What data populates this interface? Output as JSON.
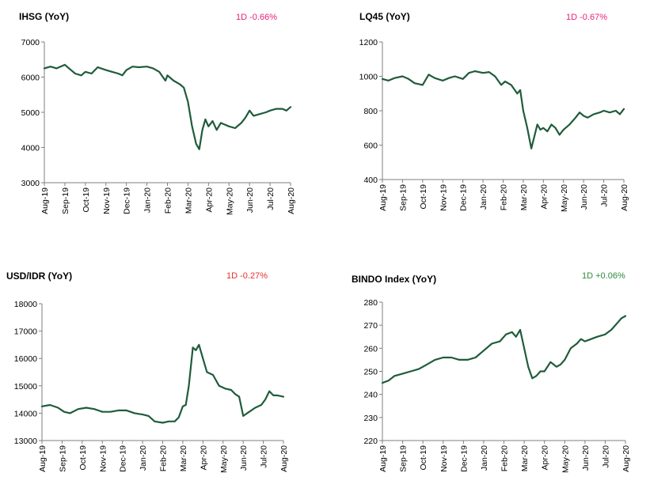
{
  "colors": {
    "line": "#1f5c3a",
    "negative": "#e8207a",
    "negative_red": "#e83030",
    "positive": "#2e8b3a",
    "axis": "#7f7f7f"
  },
  "months": [
    "Aug-19",
    "Sep-19",
    "Oct-19",
    "Nov-19",
    "Dec-19",
    "Jan-20",
    "Feb-20",
    "Mar-20",
    "Apr-20",
    "May-20",
    "Jun-20",
    "Jul-20",
    "Aug-20"
  ],
  "chart_data": [
    {
      "type": "line",
      "title": "IHSG (YoY)",
      "change": "1D -0.66%",
      "change_color": "#e8207a",
      "ylim": [
        3000,
        7000
      ],
      "yticks": [
        3000,
        4000,
        5000,
        6000,
        7000
      ],
      "categories": [
        "Aug-19",
        "Sep-19",
        "Oct-19",
        "Nov-19",
        "Dec-19",
        "Jan-20",
        "Feb-20",
        "Mar-20",
        "Apr-20",
        "May-20",
        "Jun-20",
        "Jul-20",
        "Aug-20"
      ],
      "series": [
        {
          "x": [
            0,
            0.3,
            0.6,
            1.0,
            1.3,
            1.5,
            1.8,
            2.0,
            2.3,
            2.6,
            3.0,
            3.3,
            3.6,
            3.8,
            4.0,
            4.3,
            4.6,
            5.0,
            5.3,
            5.6,
            5.9,
            6.0,
            6.3,
            6.6,
            6.8,
            7.0,
            7.2,
            7.4,
            7.55,
            7.7,
            7.85,
            8.0,
            8.2,
            8.4,
            8.6,
            8.8,
            9.0,
            9.3,
            9.6,
            9.8,
            10.0,
            10.2,
            10.5,
            10.8,
            11.0,
            11.3,
            11.6,
            11.8,
            12.0
          ],
          "values": [
            6250,
            6300,
            6250,
            6350,
            6200,
            6100,
            6050,
            6150,
            6100,
            6280,
            6200,
            6150,
            6100,
            6050,
            6200,
            6300,
            6280,
            6300,
            6250,
            6150,
            5900,
            6050,
            5900,
            5800,
            5700,
            5300,
            4600,
            4100,
            3950,
            4500,
            4800,
            4600,
            4750,
            4500,
            4700,
            4650,
            4600,
            4550,
            4700,
            4850,
            5050,
            4900,
            4950,
            5000,
            5050,
            5100,
            5100,
            5050,
            5150
          ]
        }
      ]
    },
    {
      "type": "line",
      "title": "LQ45 (YoY)",
      "change": "1D -0.67%",
      "change_color": "#e8207a",
      "ylim": [
        400,
        1200
      ],
      "yticks": [
        400,
        600,
        800,
        1000,
        1200
      ],
      "categories": [
        "Aug-19",
        "Sep-19",
        "Oct-19",
        "Nov-19",
        "Dec-19",
        "Jan-20",
        "Feb-20",
        "Mar-20",
        "Apr-20",
        "May-20",
        "Jun-20",
        "Jul-20",
        "Aug-20"
      ],
      "series": [
        {
          "x": [
            0,
            0.3,
            0.6,
            1.0,
            1.3,
            1.6,
            2.0,
            2.3,
            2.6,
            3.0,
            3.3,
            3.6,
            4.0,
            4.3,
            4.6,
            5.0,
            5.3,
            5.6,
            5.9,
            6.1,
            6.4,
            6.7,
            6.85,
            7.0,
            7.2,
            7.4,
            7.55,
            7.7,
            7.85,
            8.0,
            8.2,
            8.4,
            8.6,
            8.8,
            9.0,
            9.3,
            9.6,
            9.8,
            10.0,
            10.2,
            10.5,
            10.8,
            11.0,
            11.3,
            11.6,
            11.8,
            12.0
          ],
          "values": [
            985,
            975,
            990,
            1000,
            985,
            960,
            950,
            1010,
            990,
            975,
            990,
            1000,
            985,
            1020,
            1030,
            1020,
            1025,
            1000,
            950,
            970,
            950,
            900,
            920,
            800,
            700,
            580,
            650,
            720,
            690,
            700,
            680,
            720,
            700,
            660,
            690,
            720,
            760,
            790,
            770,
            760,
            780,
            790,
            800,
            790,
            800,
            780,
            810
          ]
        }
      ]
    },
    {
      "type": "line",
      "title": "USD/IDR  (YoY)",
      "change": "1D -0.27%",
      "change_color": "#e83030",
      "ylim": [
        13000,
        18000
      ],
      "yticks": [
        13000,
        14000,
        15000,
        16000,
        17000,
        18000
      ],
      "categories": [
        "Aug-19",
        "Sep-19",
        "Oct-19",
        "Nov-19",
        "Dec-19",
        "Jan-20",
        "Feb-20",
        "Mar-20",
        "Apr-20",
        "May-20",
        "Jun-20",
        "Jul-20",
        "Aug-20"
      ],
      "series": [
        {
          "x": [
            0,
            0.4,
            0.8,
            1.1,
            1.4,
            1.8,
            2.2,
            2.6,
            3.0,
            3.4,
            3.8,
            4.2,
            4.6,
            5.0,
            5.3,
            5.6,
            6.0,
            6.3,
            6.6,
            6.8,
            7.0,
            7.15,
            7.3,
            7.5,
            7.65,
            7.8,
            8.0,
            8.2,
            8.5,
            8.8,
            9.1,
            9.4,
            9.6,
            9.8,
            10.0,
            10.3,
            10.6,
            10.9,
            11.1,
            11.3,
            11.5,
            11.7,
            12.0
          ],
          "values": [
            14250,
            14300,
            14200,
            14050,
            14000,
            14150,
            14200,
            14150,
            14050,
            14050,
            14100,
            14100,
            14000,
            13950,
            13900,
            13700,
            13650,
            13700,
            13700,
            13850,
            14250,
            14300,
            15000,
            16400,
            16300,
            16500,
            16000,
            15500,
            15400,
            15000,
            14900,
            14850,
            14700,
            14600,
            13900,
            14050,
            14200,
            14300,
            14500,
            14800,
            14650,
            14650,
            14600
          ]
        }
      ]
    },
    {
      "type": "line",
      "title": "BINDO Index (YoY)",
      "change": "1D +0.06%",
      "change_color": "#2e8b3a",
      "ylim": [
        220,
        280
      ],
      "yticks": [
        220,
        230,
        240,
        250,
        260,
        270,
        280
      ],
      "categories": [
        "Aug-19",
        "Sep-19",
        "Oct-19",
        "Nov-19",
        "Dec-19",
        "Jan-20",
        "Feb-20",
        "Mar-20",
        "Apr-20",
        "May-20",
        "Jun-20",
        "Jul-20",
        "Aug-20"
      ],
      "series": [
        {
          "x": [
            0,
            0.3,
            0.6,
            1.0,
            1.4,
            1.8,
            2.2,
            2.6,
            3.0,
            3.4,
            3.8,
            4.2,
            4.6,
            5.0,
            5.4,
            5.8,
            6.1,
            6.4,
            6.6,
            6.8,
            7.0,
            7.2,
            7.4,
            7.6,
            7.8,
            8.0,
            8.3,
            8.6,
            8.8,
            9.0,
            9.3,
            9.6,
            9.8,
            10.0,
            10.3,
            10.6,
            11.0,
            11.3,
            11.6,
            11.8,
            12.0
          ],
          "values": [
            245,
            246,
            248,
            249,
            250,
            251,
            253,
            255,
            256,
            256,
            255,
            255,
            256,
            259,
            262,
            263,
            266,
            267,
            265,
            268,
            260,
            252,
            247,
            248,
            250,
            250,
            254,
            252,
            253,
            255,
            260,
            262,
            264,
            263,
            264,
            265,
            266,
            268,
            271,
            273,
            274
          ]
        }
      ]
    }
  ]
}
